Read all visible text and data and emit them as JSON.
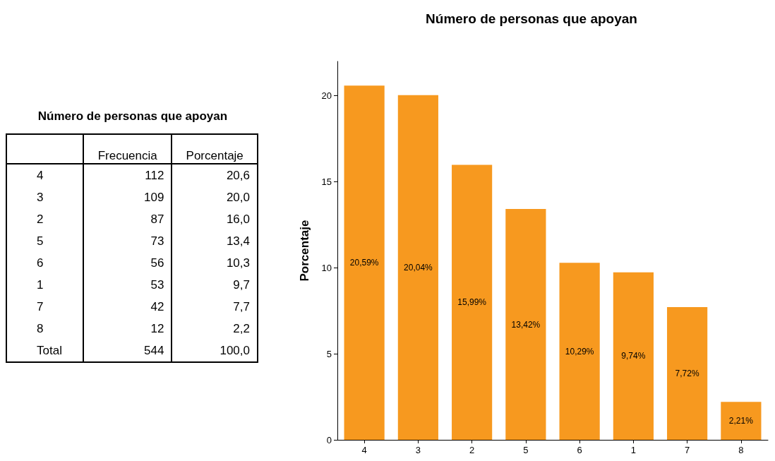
{
  "chart_data": [
    {
      "type": "other",
      "title": "Número de personas que apoyan",
      "categories": [
        "4",
        "3",
        "2",
        "5",
        "6",
        "1",
        "7",
        "8",
        "Total"
      ],
      "data_labels": true,
      "series": [
        {
          "name": "Frecuencia",
          "values": [
            112,
            109,
            87,
            73,
            56,
            53,
            42,
            12,
            544
          ]
        },
        {
          "name": "Porcentaje",
          "values": [
            20.6,
            20.0,
            16.0,
            13.4,
            10.3,
            9.7,
            7.7,
            2.2,
            100.0
          ],
          "value_labels": [
            "20,6",
            "20,0",
            "16,0",
            "13,4",
            "10,3",
            "9,7",
            "7,7",
            "2,2",
            "100,0"
          ]
        }
      ]
    },
    {
      "type": "bar",
      "title": "Número de personas que apoyan",
      "ylabel": "Porcentaje",
      "categories": [
        "4",
        "3",
        "2",
        "5",
        "6",
        "1",
        "7",
        "8"
      ],
      "values": [
        20.59,
        20.04,
        15.99,
        13.42,
        10.29,
        9.74,
        7.72,
        2.21
      ],
      "value_labels": [
        "20,59%",
        "20,04%",
        "15,99%",
        "13,42%",
        "10,29%",
        "9,74%",
        "7,72%",
        "2,21%"
      ],
      "color": "#f7991f",
      "ylim": [
        0,
        22
      ],
      "yticks": [
        0,
        5,
        10,
        15,
        20
      ],
      "grid": false
    }
  ]
}
